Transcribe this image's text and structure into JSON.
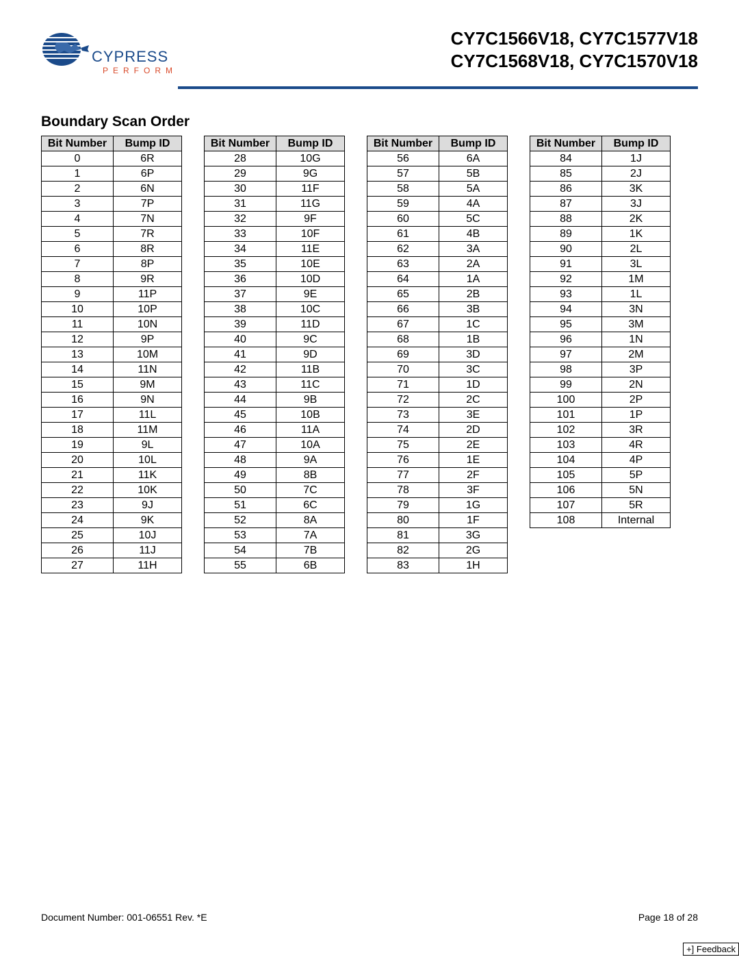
{
  "header": {
    "logo_brand": "CYPRESS",
    "logo_tagline": "PERFORM",
    "part_line1": "CY7C1566V18, CY7C1577V18",
    "part_line2": "CY7C1568V18, CY7C1570V18",
    "rule_color": "#1a4a8a"
  },
  "section_title": "Boundary Scan Order",
  "table": {
    "col_bit_header": "Bit Number",
    "col_bump_header": "Bump ID",
    "header_bg": "#dcdcdc",
    "cols": [
      [
        {
          "bit": "0",
          "bump": "6R"
        },
        {
          "bit": "1",
          "bump": "6P"
        },
        {
          "bit": "2",
          "bump": "6N"
        },
        {
          "bit": "3",
          "bump": "7P"
        },
        {
          "bit": "4",
          "bump": "7N"
        },
        {
          "bit": "5",
          "bump": "7R"
        },
        {
          "bit": "6",
          "bump": "8R"
        },
        {
          "bit": "7",
          "bump": "8P"
        },
        {
          "bit": "8",
          "bump": "9R"
        },
        {
          "bit": "9",
          "bump": "11P"
        },
        {
          "bit": "10",
          "bump": "10P"
        },
        {
          "bit": "11",
          "bump": "10N"
        },
        {
          "bit": "12",
          "bump": "9P"
        },
        {
          "bit": "13",
          "bump": "10M"
        },
        {
          "bit": "14",
          "bump": "11N"
        },
        {
          "bit": "15",
          "bump": "9M"
        },
        {
          "bit": "16",
          "bump": "9N"
        },
        {
          "bit": "17",
          "bump": "11L"
        },
        {
          "bit": "18",
          "bump": "11M"
        },
        {
          "bit": "19",
          "bump": "9L"
        },
        {
          "bit": "20",
          "bump": "10L"
        },
        {
          "bit": "21",
          "bump": "11K"
        },
        {
          "bit": "22",
          "bump": "10K"
        },
        {
          "bit": "23",
          "bump": "9J"
        },
        {
          "bit": "24",
          "bump": "9K"
        },
        {
          "bit": "25",
          "bump": "10J"
        },
        {
          "bit": "26",
          "bump": "11J"
        },
        {
          "bit": "27",
          "bump": "11H"
        }
      ],
      [
        {
          "bit": "28",
          "bump": "10G"
        },
        {
          "bit": "29",
          "bump": "9G"
        },
        {
          "bit": "30",
          "bump": "11F"
        },
        {
          "bit": "31",
          "bump": "11G"
        },
        {
          "bit": "32",
          "bump": "9F"
        },
        {
          "bit": "33",
          "bump": "10F"
        },
        {
          "bit": "34",
          "bump": "11E"
        },
        {
          "bit": "35",
          "bump": "10E"
        },
        {
          "bit": "36",
          "bump": "10D"
        },
        {
          "bit": "37",
          "bump": "9E"
        },
        {
          "bit": "38",
          "bump": "10C"
        },
        {
          "bit": "39",
          "bump": "11D"
        },
        {
          "bit": "40",
          "bump": "9C"
        },
        {
          "bit": "41",
          "bump": "9D"
        },
        {
          "bit": "42",
          "bump": "11B"
        },
        {
          "bit": "43",
          "bump": "11C"
        },
        {
          "bit": "44",
          "bump": "9B"
        },
        {
          "bit": "45",
          "bump": "10B"
        },
        {
          "bit": "46",
          "bump": "11A"
        },
        {
          "bit": "47",
          "bump": "10A"
        },
        {
          "bit": "48",
          "bump": "9A"
        },
        {
          "bit": "49",
          "bump": "8B"
        },
        {
          "bit": "50",
          "bump": "7C"
        },
        {
          "bit": "51",
          "bump": "6C"
        },
        {
          "bit": "52",
          "bump": "8A"
        },
        {
          "bit": "53",
          "bump": "7A"
        },
        {
          "bit": "54",
          "bump": "7B"
        },
        {
          "bit": "55",
          "bump": "6B"
        }
      ],
      [
        {
          "bit": "56",
          "bump": "6A"
        },
        {
          "bit": "57",
          "bump": "5B"
        },
        {
          "bit": "58",
          "bump": "5A"
        },
        {
          "bit": "59",
          "bump": "4A"
        },
        {
          "bit": "60",
          "bump": "5C"
        },
        {
          "bit": "61",
          "bump": "4B"
        },
        {
          "bit": "62",
          "bump": "3A"
        },
        {
          "bit": "63",
          "bump": "2A"
        },
        {
          "bit": "64",
          "bump": "1A"
        },
        {
          "bit": "65",
          "bump": "2B"
        },
        {
          "bit": "66",
          "bump": "3B"
        },
        {
          "bit": "67",
          "bump": "1C"
        },
        {
          "bit": "68",
          "bump": "1B"
        },
        {
          "bit": "69",
          "bump": "3D"
        },
        {
          "bit": "70",
          "bump": "3C"
        },
        {
          "bit": "71",
          "bump": "1D"
        },
        {
          "bit": "72",
          "bump": "2C"
        },
        {
          "bit": "73",
          "bump": "3E"
        },
        {
          "bit": "74",
          "bump": "2D"
        },
        {
          "bit": "75",
          "bump": "2E"
        },
        {
          "bit": "76",
          "bump": "1E"
        },
        {
          "bit": "77",
          "bump": "2F"
        },
        {
          "bit": "78",
          "bump": "3F"
        },
        {
          "bit": "79",
          "bump": "1G"
        },
        {
          "bit": "80",
          "bump": "1F"
        },
        {
          "bit": "81",
          "bump": "3G"
        },
        {
          "bit": "82",
          "bump": "2G"
        },
        {
          "bit": "83",
          "bump": "1H"
        }
      ],
      [
        {
          "bit": "84",
          "bump": "1J"
        },
        {
          "bit": "85",
          "bump": "2J"
        },
        {
          "bit": "86",
          "bump": "3K"
        },
        {
          "bit": "87",
          "bump": "3J"
        },
        {
          "bit": "88",
          "bump": "2K"
        },
        {
          "bit": "89",
          "bump": "1K"
        },
        {
          "bit": "90",
          "bump": "2L"
        },
        {
          "bit": "91",
          "bump": "3L"
        },
        {
          "bit": "92",
          "bump": "1M"
        },
        {
          "bit": "93",
          "bump": "1L"
        },
        {
          "bit": "94",
          "bump": "3N"
        },
        {
          "bit": "95",
          "bump": "3M"
        },
        {
          "bit": "96",
          "bump": "1N"
        },
        {
          "bit": "97",
          "bump": "2M"
        },
        {
          "bit": "98",
          "bump": "3P"
        },
        {
          "bit": "99",
          "bump": "2N"
        },
        {
          "bit": "100",
          "bump": "2P"
        },
        {
          "bit": "101",
          "bump": "1P"
        },
        {
          "bit": "102",
          "bump": "3R"
        },
        {
          "bit": "103",
          "bump": "4R"
        },
        {
          "bit": "104",
          "bump": "4P"
        },
        {
          "bit": "105",
          "bump": "5P"
        },
        {
          "bit": "106",
          "bump": "5N"
        },
        {
          "bit": "107",
          "bump": "5R"
        },
        {
          "bit": "108",
          "bump": "Internal"
        }
      ]
    ]
  },
  "footer": {
    "doc_number": "Document Number: 001-06551 Rev. *E",
    "page_label": "Page 18 of 28",
    "feedback_label": "+] Feedback"
  }
}
